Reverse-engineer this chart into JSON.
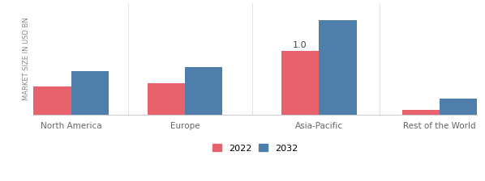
{
  "categories": [
    "North America",
    "Europe",
    "Asia-Pacific",
    "Rest of the World"
  ],
  "values_2022": [
    0.45,
    0.5,
    1.0,
    0.08
  ],
  "values_2032": [
    0.68,
    0.75,
    1.48,
    0.25
  ],
  "color_2022": "#e8626e",
  "color_2032": "#4d7faa",
  "ylabel": "MARKET SIZE IN USD BN",
  "annotation_region": 2,
  "annotation_value": "1.0",
  "legend_labels": [
    "2022",
    "2032"
  ],
  "bar_width": 0.28,
  "group_positions": [
    0,
    0.85,
    1.85,
    2.75
  ],
  "ylim": [
    0,
    1.75
  ],
  "xlim_left": -0.28,
  "xlim_right": 3.03,
  "background_color": "#ffffff",
  "ylabel_fontsize": 6.0,
  "xlabel_fontsize": 7.5,
  "annot_fontsize": 8.0,
  "legend_fontsize": 8.0
}
